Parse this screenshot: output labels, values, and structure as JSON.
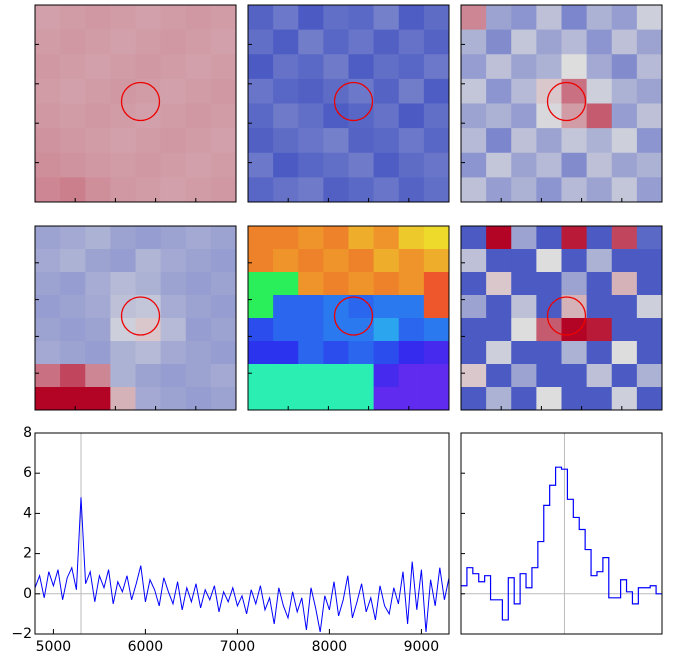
{
  "chart_data": [
    {
      "type": "image",
      "colormap": "coolwarm",
      "vlim": [
        0,
        1
      ],
      "values": [
        [
          0.64,
          0.65,
          0.66,
          0.65,
          0.64,
          0.65,
          0.66,
          0.65
        ],
        [
          0.65,
          0.66,
          0.65,
          0.64,
          0.65,
          0.66,
          0.65,
          0.64
        ],
        [
          0.66,
          0.65,
          0.64,
          0.65,
          0.66,
          0.65,
          0.64,
          0.65
        ],
        [
          0.65,
          0.64,
          0.65,
          0.66,
          0.65,
          0.64,
          0.65,
          0.66
        ],
        [
          0.66,
          0.65,
          0.66,
          0.65,
          0.64,
          0.65,
          0.66,
          0.65
        ],
        [
          0.67,
          0.66,
          0.65,
          0.64,
          0.65,
          0.66,
          0.65,
          0.64
        ],
        [
          0.68,
          0.67,
          0.66,
          0.65,
          0.66,
          0.65,
          0.64,
          0.65
        ],
        [
          0.7,
          0.72,
          0.68,
          0.66,
          0.65,
          0.64,
          0.65,
          0.66
        ]
      ]
    },
    {
      "type": "image",
      "colormap": "coolwarm",
      "vlim": [
        0,
        1
      ],
      "values": [
        [
          0.08,
          0.15,
          0.05,
          0.12,
          0.1,
          0.18,
          0.06,
          0.11
        ],
        [
          0.12,
          0.06,
          0.17,
          0.09,
          0.14,
          0.07,
          0.13,
          0.08
        ],
        [
          0.05,
          0.13,
          0.1,
          0.16,
          0.06,
          0.12,
          0.09,
          0.15
        ],
        [
          0.14,
          0.09,
          0.07,
          0.11,
          0.15,
          0.08,
          0.17,
          0.06
        ],
        [
          0.1,
          0.16,
          0.12,
          0.06,
          0.09,
          0.13,
          0.05,
          0.12
        ],
        [
          0.07,
          0.11,
          0.14,
          0.18,
          0.08,
          0.1,
          0.15,
          0.09
        ],
        [
          0.15,
          0.05,
          0.09,
          0.12,
          0.16,
          0.06,
          0.11,
          0.14
        ],
        [
          0.09,
          0.13,
          0.16,
          0.07,
          0.1,
          0.14,
          0.08,
          0.12
        ]
      ]
    },
    {
      "type": "image",
      "colormap": "coolwarm",
      "vlim": [
        0,
        1
      ],
      "values": [
        [
          0.7,
          0.3,
          0.25,
          0.4,
          0.2,
          0.35,
          0.28,
          0.45
        ],
        [
          0.35,
          0.22,
          0.42,
          0.3,
          0.38,
          0.25,
          0.4,
          0.3
        ],
        [
          0.28,
          0.4,
          0.3,
          0.35,
          0.5,
          0.32,
          0.22,
          0.38
        ],
        [
          0.42,
          0.25,
          0.38,
          0.55,
          0.75,
          0.45,
          0.35,
          0.3
        ],
        [
          0.3,
          0.35,
          0.28,
          0.48,
          0.65,
          0.8,
          0.28,
          0.4
        ],
        [
          0.38,
          0.2,
          0.4,
          0.3,
          0.42,
          0.35,
          0.45,
          0.25
        ],
        [
          0.25,
          0.42,
          0.3,
          0.38,
          0.22,
          0.4,
          0.3,
          0.35
        ],
        [
          0.4,
          0.28,
          0.35,
          0.25,
          0.38,
          0.3,
          0.42,
          0.28
        ]
      ]
    },
    {
      "type": "image",
      "colormap": "coolwarm",
      "vlim": [
        0,
        1
      ],
      "values": [
        [
          0.3,
          0.32,
          0.35,
          0.3,
          0.28,
          0.3,
          0.32,
          0.3
        ],
        [
          0.32,
          0.35,
          0.3,
          0.28,
          0.36,
          0.32,
          0.3,
          0.28
        ],
        [
          0.3,
          0.28,
          0.33,
          0.38,
          0.35,
          0.3,
          0.28,
          0.3
        ],
        [
          0.28,
          0.3,
          0.32,
          0.4,
          0.42,
          0.33,
          0.3,
          0.28
        ],
        [
          0.3,
          0.28,
          0.3,
          0.45,
          0.55,
          0.38,
          0.28,
          0.3
        ],
        [
          0.32,
          0.3,
          0.28,
          0.35,
          0.38,
          0.32,
          0.3,
          0.28
        ],
        [
          0.75,
          0.85,
          0.7,
          0.35,
          0.3,
          0.28,
          0.3,
          0.32
        ],
        [
          1.0,
          1.0,
          1.0,
          0.6,
          0.32,
          0.3,
          0.28,
          0.3
        ]
      ]
    },
    {
      "type": "image",
      "colormap": "rainbow",
      "vlim": [
        0,
        1
      ],
      "values": [
        [
          0.9,
          0.9,
          0.88,
          0.9,
          0.85,
          0.88,
          0.82,
          0.8
        ],
        [
          0.9,
          0.88,
          0.9,
          0.88,
          0.9,
          0.85,
          0.88,
          0.85
        ],
        [
          0.5,
          0.5,
          0.88,
          0.9,
          0.88,
          0.9,
          0.88,
          0.95
        ],
        [
          0.5,
          0.18,
          0.18,
          0.2,
          0.18,
          0.2,
          0.2,
          0.95
        ],
        [
          0.15,
          0.18,
          0.18,
          0.2,
          0.2,
          0.25,
          0.18,
          0.2
        ],
        [
          0.12,
          0.12,
          0.18,
          0.15,
          0.18,
          0.15,
          0.1,
          0.08
        ],
        [
          0.4,
          0.4,
          0.4,
          0.4,
          0.4,
          0.08,
          0.05,
          0.05
        ],
        [
          0.4,
          0.4,
          0.4,
          0.4,
          0.4,
          0.05,
          0.05,
          0.05
        ]
      ]
    },
    {
      "type": "image",
      "colormap": "coolwarm",
      "vlim": [
        0,
        1
      ],
      "values": [
        [
          0.05,
          1.0,
          0.3,
          0.05,
          0.95,
          0.05,
          0.85,
          0.1
        ],
        [
          0.4,
          0.05,
          0.05,
          0.5,
          0.05,
          0.35,
          0.05,
          0.05
        ],
        [
          0.05,
          0.55,
          0.05,
          0.05,
          0.3,
          0.05,
          0.6,
          0.05
        ],
        [
          0.3,
          0.05,
          0.4,
          0.05,
          0.6,
          0.05,
          0.05,
          0.45
        ],
        [
          0.05,
          0.05,
          0.5,
          0.8,
          1.0,
          0.95,
          0.05,
          0.05
        ],
        [
          0.05,
          0.45,
          0.05,
          0.05,
          0.35,
          0.05,
          0.5,
          0.05
        ],
        [
          0.55,
          0.05,
          0.3,
          0.05,
          0.05,
          0.4,
          0.05,
          0.35
        ],
        [
          0.05,
          0.35,
          0.05,
          0.5,
          0.05,
          0.05,
          0.45,
          0.05
        ]
      ]
    },
    {
      "type": "line",
      "color": "#0000ff",
      "xlim": [
        4800,
        9300
      ],
      "ylim": [
        -2,
        8
      ],
      "xticks": [
        5000,
        6000,
        7000,
        8000,
        9000
      ],
      "yticks": [
        {
          "value": -2,
          "label": "−2"
        },
        0,
        2,
        4,
        6,
        8
      ],
      "reference_x": 5300,
      "x": [
        4800,
        4850,
        4900,
        4950,
        5000,
        5050,
        5100,
        5150,
        5200,
        5250,
        5300,
        5350,
        5400,
        5450,
        5500,
        5550,
        5600,
        5650,
        5700,
        5750,
        5800,
        5850,
        5900,
        5950,
        6000,
        6050,
        6100,
        6150,
        6200,
        6250,
        6300,
        6350,
        6400,
        6450,
        6500,
        6550,
        6600,
        6650,
        6700,
        6750,
        6800,
        6850,
        6900,
        6950,
        7000,
        7050,
        7100,
        7150,
        7200,
        7250,
        7300,
        7350,
        7400,
        7450,
        7500,
        7550,
        7600,
        7650,
        7700,
        7750,
        7800,
        7850,
        7900,
        7950,
        8000,
        8050,
        8100,
        8150,
        8200,
        8250,
        8300,
        8350,
        8400,
        8450,
        8500,
        8550,
        8600,
        8650,
        8700,
        8750,
        8800,
        8850,
        8900,
        8950,
        9000,
        9050,
        9100,
        9150,
        9200,
        9250,
        9300
      ],
      "values": [
        0.3,
        0.9,
        -0.2,
        1.1,
        0.4,
        1.2,
        -0.3,
        0.8,
        1.3,
        0.2,
        4.8,
        0.5,
        1.1,
        -0.4,
        0.9,
        0.3,
        1.2,
        -0.5,
        0.6,
        0.1,
        0.9,
        -0.3,
        0.5,
        1.4,
        -0.4,
        0.7,
        0.2,
        -0.6,
        0.8,
        0.1,
        -0.5,
        0.6,
        -0.8,
        0.3,
        -0.4,
        0.5,
        -0.7,
        0.2,
        -0.3,
        0.4,
        -0.9,
        0.1,
        -0.4,
        0.3,
        -0.6,
        -0.1,
        -1.0,
        0.2,
        -0.5,
        0.4,
        -0.8,
        -0.2,
        -1.5,
        0.3,
        -0.6,
        -1.2,
        0.1,
        -0.9,
        -0.2,
        -1.8,
        0.3,
        -0.7,
        -1.9,
        -0.1,
        -0.8,
        0.6,
        -1.1,
        -0.3,
        0.9,
        -1.2,
        -0.4,
        0.5,
        -0.9,
        -0.2,
        -1.3,
        0.4,
        -0.6,
        -1.0,
        0.3,
        -0.5,
        1.1,
        -1.5,
        1.6,
        -0.8,
        1.2,
        -1.9,
        0.7,
        -0.6,
        1.3,
        -0.3,
        0.8
      ]
    },
    {
      "type": "step",
      "color": "#0000ff",
      "ylim": [
        -2,
        8
      ],
      "reference_index": 17,
      "values": [
        0.4,
        1.3,
        1.0,
        0.6,
        0.9,
        -0.3,
        -0.3,
        -1.3,
        0.8,
        -0.5,
        1.0,
        0.3,
        1.3,
        2.6,
        4.4,
        5.4,
        6.3,
        6.2,
        4.7,
        3.8,
        3.2,
        2.2,
        0.9,
        1.1,
        1.8,
        -0.2,
        -0.2,
        0.7,
        0.1,
        -0.5,
        0.3,
        0.3,
        0.4,
        0.0
      ]
    }
  ]
}
